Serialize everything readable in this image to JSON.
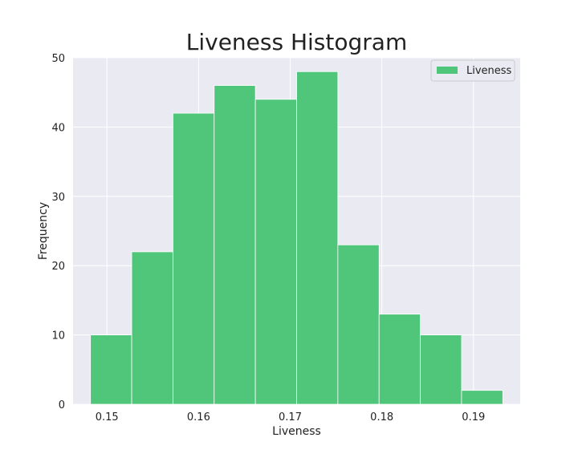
{
  "chart_data": {
    "type": "bar",
    "title": "Liveness Histogram",
    "xlabel": "Liveness",
    "ylabel": "Frequency",
    "bin_edges": [
      0.1482,
      0.1527,
      0.1572,
      0.1617,
      0.1662,
      0.1707,
      0.1752,
      0.1797,
      0.1842,
      0.1887,
      0.1932
    ],
    "values": [
      10,
      22,
      42,
      46,
      44,
      48,
      23,
      13,
      10,
      2
    ],
    "xlim": [
      0.1463,
      0.1951
    ],
    "ylim": [
      0,
      50
    ],
    "xticks": [
      0.15,
      0.16,
      0.17,
      0.18,
      0.19
    ],
    "xtick_labels": [
      "0.15",
      "0.16",
      "0.17",
      "0.18",
      "0.19"
    ],
    "yticks": [
      0,
      10,
      20,
      30,
      40,
      50
    ],
    "ytick_labels": [
      "0",
      "10",
      "20",
      "30",
      "40",
      "50"
    ],
    "grid": true,
    "legend": {
      "position": "top-right",
      "entries": [
        {
          "name": "Liveness"
        }
      ]
    },
    "colors": {
      "bar": "#4fc679",
      "plot_background": "#eaeaf2",
      "grid": "#ffffff",
      "bar_edge": "#ffffff"
    }
  }
}
